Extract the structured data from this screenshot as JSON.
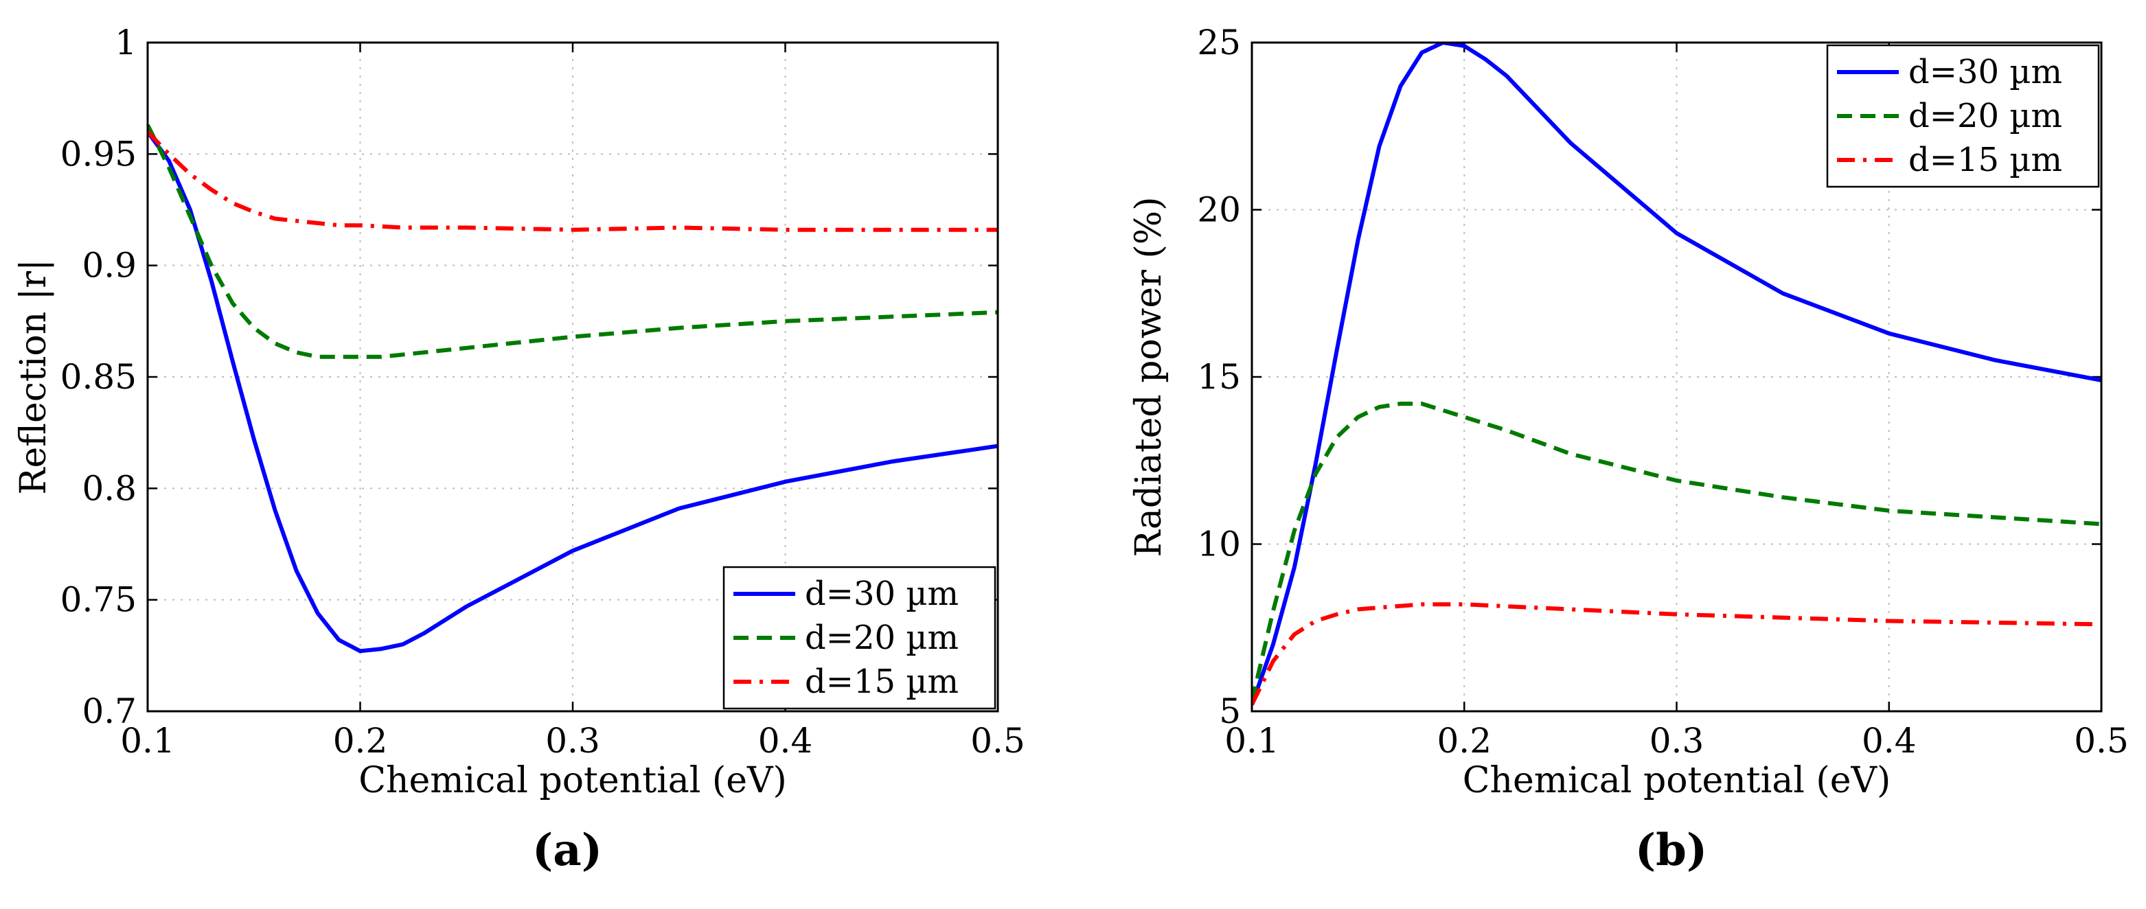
{
  "chart_data": [
    {
      "type": "line",
      "panel_label": "(a)",
      "xlabel": "Chemical potential (eV)",
      "ylabel": "Reflection |r|",
      "xlim": [
        0.1,
        0.5
      ],
      "ylim": [
        0.7,
        1.0
      ],
      "x_ticks": [
        "0.1",
        "0.2",
        "0.3",
        "0.4",
        "0.5"
      ],
      "y_ticks": [
        "0.7",
        "0.75",
        "0.8",
        "0.85",
        "0.9",
        "0.95",
        "1"
      ],
      "grid": true,
      "legend_position": "bottom-right",
      "series": [
        {
          "name": "d=30 µm",
          "color": "#0000ff",
          "dash": "solid",
          "x": [
            0.1,
            0.11,
            0.12,
            0.13,
            0.14,
            0.15,
            0.16,
            0.17,
            0.18,
            0.19,
            0.2,
            0.21,
            0.22,
            0.23,
            0.25,
            0.3,
            0.35,
            0.4,
            0.45,
            0.5
          ],
          "y": [
            0.96,
            0.947,
            0.925,
            0.893,
            0.857,
            0.822,
            0.79,
            0.763,
            0.744,
            0.732,
            0.727,
            0.728,
            0.73,
            0.735,
            0.747,
            0.772,
            0.791,
            0.803,
            0.812,
            0.819
          ]
        },
        {
          "name": "d=20 µm",
          "color": "#007a00",
          "dash": "dashed",
          "x": [
            0.1,
            0.11,
            0.12,
            0.13,
            0.14,
            0.15,
            0.16,
            0.17,
            0.18,
            0.19,
            0.2,
            0.21,
            0.22,
            0.23,
            0.25,
            0.3,
            0.35,
            0.4,
            0.45,
            0.5
          ],
          "y": [
            0.963,
            0.944,
            0.922,
            0.9,
            0.883,
            0.872,
            0.865,
            0.861,
            0.859,
            0.859,
            0.859,
            0.859,
            0.86,
            0.861,
            0.863,
            0.868,
            0.872,
            0.875,
            0.877,
            0.879
          ]
        },
        {
          "name": "d=15 µm",
          "color": "#ff0000",
          "dash": "dashdot",
          "x": [
            0.1,
            0.11,
            0.12,
            0.13,
            0.14,
            0.15,
            0.16,
            0.17,
            0.18,
            0.19,
            0.2,
            0.22,
            0.25,
            0.3,
            0.35,
            0.4,
            0.45,
            0.5
          ],
          "y": [
            0.96,
            0.95,
            0.941,
            0.934,
            0.928,
            0.924,
            0.921,
            0.92,
            0.919,
            0.918,
            0.918,
            0.917,
            0.917,
            0.916,
            0.917,
            0.916,
            0.916,
            0.916
          ]
        }
      ]
    },
    {
      "type": "line",
      "panel_label": "(b)",
      "xlabel": "Chemical potential (eV)",
      "ylabel": "Radiated power (%)",
      "xlim": [
        0.1,
        0.5
      ],
      "ylim": [
        5,
        25
      ],
      "x_ticks": [
        "0.1",
        "0.2",
        "0.3",
        "0.4",
        "0.5"
      ],
      "y_ticks": [
        "5",
        "10",
        "15",
        "20",
        "25"
      ],
      "grid": true,
      "legend_position": "top-right",
      "series": [
        {
          "name": "d=30 µm",
          "color": "#0000ff",
          "dash": "solid",
          "x": [
            0.1,
            0.11,
            0.12,
            0.13,
            0.14,
            0.15,
            0.16,
            0.17,
            0.18,
            0.19,
            0.2,
            0.21,
            0.22,
            0.25,
            0.3,
            0.35,
            0.4,
            0.45,
            0.5
          ],
          "y": [
            5.2,
            7.0,
            9.3,
            12.4,
            15.8,
            19.1,
            21.9,
            23.7,
            24.7,
            25.0,
            24.9,
            24.5,
            24.0,
            22.0,
            19.3,
            17.5,
            16.3,
            15.5,
            14.9
          ]
        },
        {
          "name": "d=20 µm",
          "color": "#007a00",
          "dash": "dashed",
          "x": [
            0.1,
            0.11,
            0.12,
            0.13,
            0.14,
            0.15,
            0.16,
            0.17,
            0.18,
            0.19,
            0.2,
            0.22,
            0.25,
            0.3,
            0.35,
            0.4,
            0.45,
            0.5
          ],
          "y": [
            5.3,
            8.0,
            10.4,
            12.1,
            13.2,
            13.8,
            14.1,
            14.2,
            14.2,
            14.0,
            13.8,
            13.4,
            12.7,
            11.9,
            11.4,
            11.0,
            10.8,
            10.6
          ]
        },
        {
          "name": "d=15 µm",
          "color": "#ff0000",
          "dash": "dashdot",
          "x": [
            0.1,
            0.11,
            0.12,
            0.13,
            0.14,
            0.15,
            0.16,
            0.17,
            0.18,
            0.2,
            0.25,
            0.3,
            0.35,
            0.4,
            0.45,
            0.5
          ],
          "y": [
            5.2,
            6.5,
            7.3,
            7.7,
            7.9,
            8.05,
            8.1,
            8.15,
            8.2,
            8.2,
            8.05,
            7.9,
            7.8,
            7.7,
            7.65,
            7.6
          ]
        }
      ]
    }
  ]
}
